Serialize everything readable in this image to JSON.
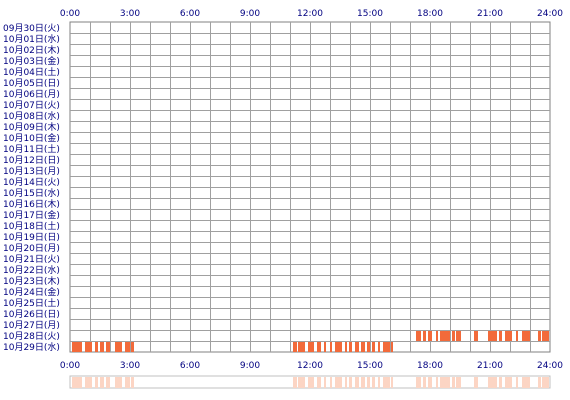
{
  "chart_data": {
    "type": "heatmap",
    "subtype": "daily-activity-timeline",
    "colors": {
      "grid": "#a0a0a0",
      "border": "#808080",
      "label": "#000080",
      "activity": "#f26a3a",
      "summary": "#fcd5c4"
    },
    "x_tick_labels": [
      "0:00",
      "3:00",
      "6:00",
      "9:00",
      "12:00",
      "15:00",
      "18:00",
      "21:00",
      "24:00"
    ],
    "hours_range": [
      0,
      24
    ],
    "rows": [
      {
        "label": "09月30日(火)",
        "active_hours": []
      },
      {
        "label": "10月01日(水)",
        "active_hours": []
      },
      {
        "label": "10月02日(木)",
        "active_hours": []
      },
      {
        "label": "10月03日(金)",
        "active_hours": []
      },
      {
        "label": "10月04日(土)",
        "active_hours": []
      },
      {
        "label": "10月05日(日)",
        "active_hours": []
      },
      {
        "label": "10月06日(月)",
        "active_hours": []
      },
      {
        "label": "10月07日(火)",
        "active_hours": []
      },
      {
        "label": "10月08日(水)",
        "active_hours": []
      },
      {
        "label": "10月09日(木)",
        "active_hours": []
      },
      {
        "label": "10月10日(金)",
        "active_hours": []
      },
      {
        "label": "10月11日(土)",
        "active_hours": []
      },
      {
        "label": "10月12日(日)",
        "active_hours": []
      },
      {
        "label": "10月13日(月)",
        "active_hours": []
      },
      {
        "label": "10月14日(火)",
        "active_hours": []
      },
      {
        "label": "10月15日(水)",
        "active_hours": []
      },
      {
        "label": "10月16日(木)",
        "active_hours": []
      },
      {
        "label": "10月17日(金)",
        "active_hours": []
      },
      {
        "label": "10月18日(土)",
        "active_hours": []
      },
      {
        "label": "10月19日(日)",
        "active_hours": []
      },
      {
        "label": "10月20日(月)",
        "active_hours": []
      },
      {
        "label": "10月21日(火)",
        "active_hours": []
      },
      {
        "label": "10月22日(水)",
        "active_hours": []
      },
      {
        "label": "10月23日(木)",
        "active_hours": []
      },
      {
        "label": "10月24日(金)",
        "active_hours": []
      },
      {
        "label": "10月25日(土)",
        "active_hours": []
      },
      {
        "label": "10月26日(日)",
        "active_hours": []
      },
      {
        "label": "10月27日(月)",
        "active_hours": []
      },
      {
        "label": "10月28日(火)",
        "active_hours": [
          [
            17.3,
            17.55
          ],
          [
            17.65,
            17.8
          ],
          [
            17.9,
            18.1
          ],
          [
            18.3,
            18.4
          ],
          [
            18.5,
            19.0
          ],
          [
            19.1,
            19.25
          ],
          [
            19.3,
            19.55
          ],
          [
            20.2,
            20.4
          ],
          [
            20.9,
            21.35
          ],
          [
            21.45,
            21.6
          ],
          [
            21.75,
            22.1
          ],
          [
            22.3,
            22.4
          ],
          [
            22.6,
            23.0
          ],
          [
            23.4,
            23.55
          ],
          [
            23.6,
            23.95
          ]
        ]
      },
      {
        "label": "10月29日(水)",
        "active_hours": [
          [
            0.1,
            0.6
          ],
          [
            0.75,
            1.1
          ],
          [
            1.25,
            1.4
          ],
          [
            1.5,
            1.7
          ],
          [
            1.8,
            2.0
          ],
          [
            2.25,
            2.6
          ],
          [
            2.75,
            3.0
          ],
          [
            3.05,
            3.2
          ],
          [
            11.15,
            11.35
          ],
          [
            11.4,
            11.75
          ],
          [
            11.9,
            12.2
          ],
          [
            12.35,
            12.55
          ],
          [
            12.7,
            12.8
          ],
          [
            13.0,
            13.1
          ],
          [
            13.25,
            13.6
          ],
          [
            13.75,
            13.85
          ],
          [
            13.95,
            14.1
          ],
          [
            14.25,
            14.45
          ],
          [
            14.55,
            14.75
          ],
          [
            14.85,
            15.0
          ],
          [
            15.1,
            15.25
          ],
          [
            15.4,
            15.5
          ],
          [
            15.65,
            16.0
          ],
          [
            16.05,
            16.15
          ]
        ]
      }
    ]
  }
}
